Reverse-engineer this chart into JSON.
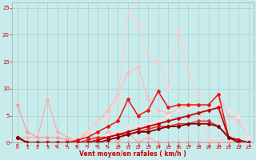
{
  "background_color": "#c8ecec",
  "grid_color": "#a0c8c8",
  "xlabel": "Vent moyen/en rafales ( km/h )",
  "xlabel_color": "#cc0000",
  "tick_color": "#cc0000",
  "xlim": [
    -0.5,
    23.5
  ],
  "ylim": [
    0,
    26
  ],
  "yticks": [
    0,
    5,
    10,
    15,
    20,
    25
  ],
  "xticks": [
    0,
    1,
    2,
    3,
    4,
    5,
    6,
    7,
    8,
    9,
    10,
    11,
    12,
    13,
    14,
    15,
    16,
    17,
    18,
    19,
    20,
    21,
    22,
    23
  ],
  "lines": [
    {
      "x": [
        0,
        1,
        2,
        3,
        4,
        5,
        6,
        7,
        8,
        9,
        10,
        11,
        12,
        13,
        14,
        15,
        16,
        17,
        18,
        19,
        20,
        21,
        22,
        23
      ],
      "y": [
        7,
        2,
        1,
        1,
        1,
        0.5,
        0,
        0,
        0,
        0,
        0,
        0,
        0,
        0,
        0,
        0,
        0,
        0,
        0,
        0,
        0,
        0,
        0,
        0
      ],
      "color": "#ff9999",
      "lw": 0.9,
      "marker": "D",
      "ms": 2.0
    },
    {
      "x": [
        0,
        1,
        2,
        3,
        4,
        5,
        6,
        7,
        8,
        9,
        10,
        11,
        12,
        13,
        14,
        15,
        16,
        17,
        18,
        19,
        20,
        21,
        22,
        23
      ],
      "y": [
        1,
        1,
        1,
        8,
        2,
        1,
        0,
        2,
        0,
        2,
        0,
        2,
        0,
        1,
        0,
        0,
        0,
        0,
        0,
        0,
        0,
        0,
        0,
        0
      ],
      "color": "#ffaaaa",
      "lw": 0.9,
      "marker": "D",
      "ms": 2.0
    },
    {
      "x": [
        0,
        1,
        2,
        3,
        4,
        5,
        6,
        7,
        8,
        9,
        10,
        11,
        12,
        13,
        14,
        15,
        16,
        17,
        18,
        19,
        20,
        21,
        22,
        23
      ],
      "y": [
        1,
        0,
        0,
        0,
        0,
        0,
        0.5,
        2,
        4,
        6,
        9,
        13,
        14,
        8,
        6,
        5.5,
        6,
        7,
        7,
        7,
        9,
        5,
        4,
        1
      ],
      "color": "#ffbbbb",
      "lw": 0.9,
      "marker": "D",
      "ms": 2.0
    },
    {
      "x": [
        0,
        1,
        2,
        3,
        4,
        5,
        6,
        7,
        8,
        9,
        10,
        11,
        12,
        13,
        14,
        15,
        16,
        17,
        18,
        19,
        20,
        21,
        22,
        23
      ],
      "y": [
        1,
        0,
        0,
        0,
        0,
        0,
        1,
        2,
        4,
        5,
        8,
        24,
        22,
        16,
        15,
        10,
        21,
        13,
        9,
        0.5,
        0.5,
        0.5,
        0.5,
        0
      ],
      "color": "#ffcccc",
      "lw": 0.9,
      "marker": "D",
      "ms": 2.0
    },
    {
      "x": [
        0,
        1,
        2,
        3,
        4,
        5,
        6,
        7,
        8,
        9,
        10,
        11,
        12,
        13,
        14,
        15,
        16,
        17,
        18,
        19,
        20,
        21,
        22,
        23
      ],
      "y": [
        1,
        0,
        0,
        0,
        0,
        0,
        0,
        0.5,
        1,
        1.5,
        2,
        3,
        3,
        3.5,
        4,
        5,
        6,
        6.5,
        7,
        7,
        7,
        6,
        5,
        1
      ],
      "color": "#ffdddd",
      "lw": 0.9,
      "marker": "D",
      "ms": 2.0
    },
    {
      "x": [
        0,
        1,
        2,
        3,
        4,
        5,
        6,
        7,
        8,
        9,
        10,
        11,
        12,
        13,
        14,
        15,
        16,
        17,
        18,
        19,
        20,
        21,
        22,
        23
      ],
      "y": [
        1,
        0,
        0,
        0,
        0,
        0,
        0,
        0.5,
        1,
        1,
        1.5,
        1.5,
        2,
        2.5,
        3,
        3,
        3.5,
        3.5,
        4,
        4,
        3,
        1,
        0.5,
        0
      ],
      "color": "#dd3333",
      "lw": 1.1,
      "marker": "D",
      "ms": 2.0
    },
    {
      "x": [
        0,
        1,
        2,
        3,
        4,
        5,
        6,
        7,
        8,
        9,
        10,
        11,
        12,
        13,
        14,
        15,
        16,
        17,
        18,
        19,
        20,
        21,
        22,
        23
      ],
      "y": [
        1,
        0,
        0,
        0,
        0,
        0,
        0.5,
        1,
        2,
        3,
        4,
        8,
        5,
        6,
        9.5,
        6.5,
        7,
        7,
        7,
        7,
        9,
        1,
        0.5,
        0
      ],
      "color": "#ee1111",
      "lw": 1.1,
      "marker": "D",
      "ms": 2.0
    },
    {
      "x": [
        0,
        1,
        2,
        3,
        4,
        5,
        6,
        7,
        8,
        9,
        10,
        11,
        12,
        13,
        14,
        15,
        16,
        17,
        18,
        19,
        20,
        21,
        22,
        23
      ],
      "y": [
        1,
        0,
        0,
        0,
        0,
        0,
        0,
        0,
        0.5,
        1,
        1.5,
        2,
        2.5,
        3,
        3.5,
        4,
        4.5,
        5,
        5.5,
        6,
        6.5,
        1,
        0.5,
        0
      ],
      "color": "#cc0000",
      "lw": 1.3,
      "marker": "D",
      "ms": 2.0
    },
    {
      "x": [
        0,
        1,
        2,
        3,
        4,
        5,
        6,
        7,
        8,
        9,
        10,
        11,
        12,
        13,
        14,
        15,
        16,
        17,
        18,
        19,
        20,
        21,
        22,
        23
      ],
      "y": [
        1,
        0,
        0,
        0,
        0,
        0,
        0,
        0,
        0,
        0.5,
        1,
        1.5,
        2,
        2,
        2.5,
        3,
        3,
        3.5,
        3.5,
        3.5,
        3,
        1,
        0,
        0
      ],
      "color": "#880000",
      "lw": 1.3,
      "marker": "D",
      "ms": 2.0
    }
  ],
  "figsize": [
    3.2,
    2.0
  ],
  "dpi": 100
}
